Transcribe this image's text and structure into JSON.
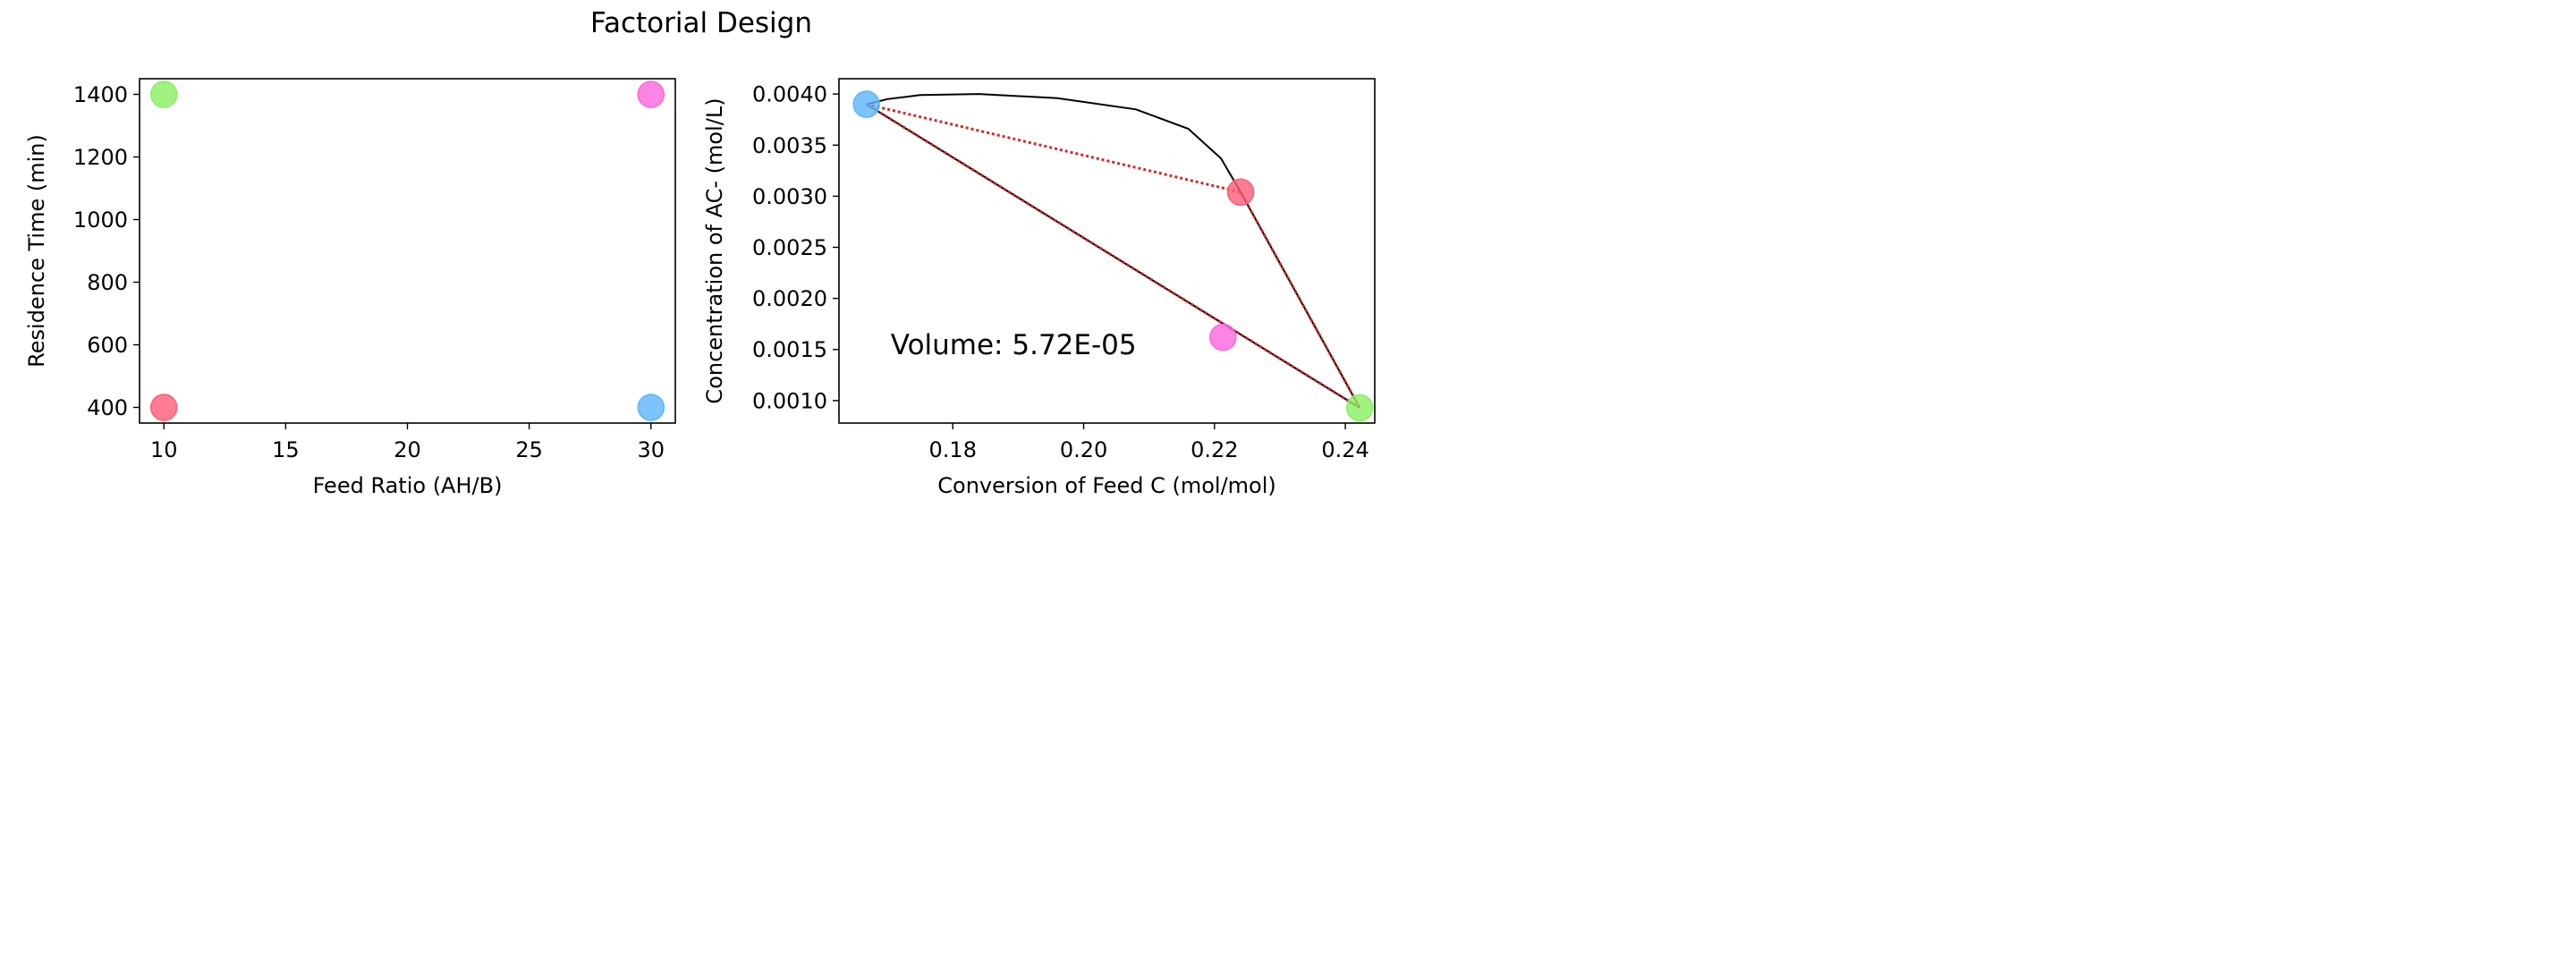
{
  "figure_title": "Factorial Design",
  "chart_data": [
    {
      "type": "scatter",
      "xlabel": "Feed Ratio (AH/B)",
      "ylabel": "Residence Time (min)",
      "xlim": [
        9,
        31
      ],
      "ylim": [
        350,
        1450
      ],
      "xticks": [
        10,
        15,
        20,
        25,
        30
      ],
      "yticks": [
        400,
        600,
        800,
        1000,
        1200,
        1400
      ],
      "points": [
        {
          "x": 10,
          "y": 1400,
          "color": "#88f060"
        },
        {
          "x": 30,
          "y": 1400,
          "color": "#ff66dd"
        },
        {
          "x": 10,
          "y": 400,
          "color": "#ff5c77"
        },
        {
          "x": 30,
          "y": 400,
          "color": "#5bb5fa"
        }
      ]
    },
    {
      "type": "scatter",
      "xlabel": "Conversion of Feed C (mol/mol)",
      "ylabel": "Concentration of AC- (mol/L)",
      "xlim": [
        0.1626,
        0.2445
      ],
      "ylim": [
        0.00078,
        0.00415
      ],
      "xticks": [
        0.18,
        0.2,
        0.22,
        0.24
      ],
      "xtick_labels": [
        "0.18",
        "0.20",
        "0.22",
        "0.24"
      ],
      "yticks": [
        0.001,
        0.0015,
        0.002,
        0.0025,
        0.003,
        0.0035,
        0.004
      ],
      "ytick_labels": [
        "0.0010",
        "0.0015",
        "0.0020",
        "0.0025",
        "0.0030",
        "0.0035",
        "0.0040"
      ],
      "points": [
        {
          "x": 0.1668,
          "y": 0.0039,
          "color": "#5bb5fa"
        },
        {
          "x": 0.224,
          "y": 0.00304,
          "color": "#ff5c77"
        },
        {
          "x": 0.2213,
          "y": 0.00162,
          "color": "#ff66dd"
        },
        {
          "x": 0.2422,
          "y": 0.00093,
          "color": "#88f060"
        }
      ],
      "hull_lines": [
        [
          [
            0.1668,
            0.0039
          ],
          [
            0.2422,
            0.00093
          ]
        ],
        [
          [
            0.224,
            0.00304
          ],
          [
            0.2422,
            0.00093
          ]
        ]
      ],
      "dotted_lines": [
        [
          [
            0.1668,
            0.0039
          ],
          [
            0.224,
            0.00304
          ]
        ],
        [
          [
            0.224,
            0.00304
          ],
          [
            0.2422,
            0.00093
          ]
        ],
        [
          [
            0.1668,
            0.0039
          ],
          [
            0.2422,
            0.00093
          ]
        ]
      ],
      "curve": [
        [
          0.1668,
          0.0039
        ],
        [
          0.17,
          0.00395
        ],
        [
          0.175,
          0.00399
        ],
        [
          0.184,
          0.004
        ],
        [
          0.196,
          0.00396
        ],
        [
          0.208,
          0.00385
        ],
        [
          0.216,
          0.00366
        ],
        [
          0.221,
          0.00337
        ],
        [
          0.224,
          0.00304
        ]
      ],
      "annotation": {
        "text": "Volume: 5.72E-05",
        "x": 0.1705,
        "y": 0.00155,
        "color": "#d62728"
      }
    }
  ]
}
